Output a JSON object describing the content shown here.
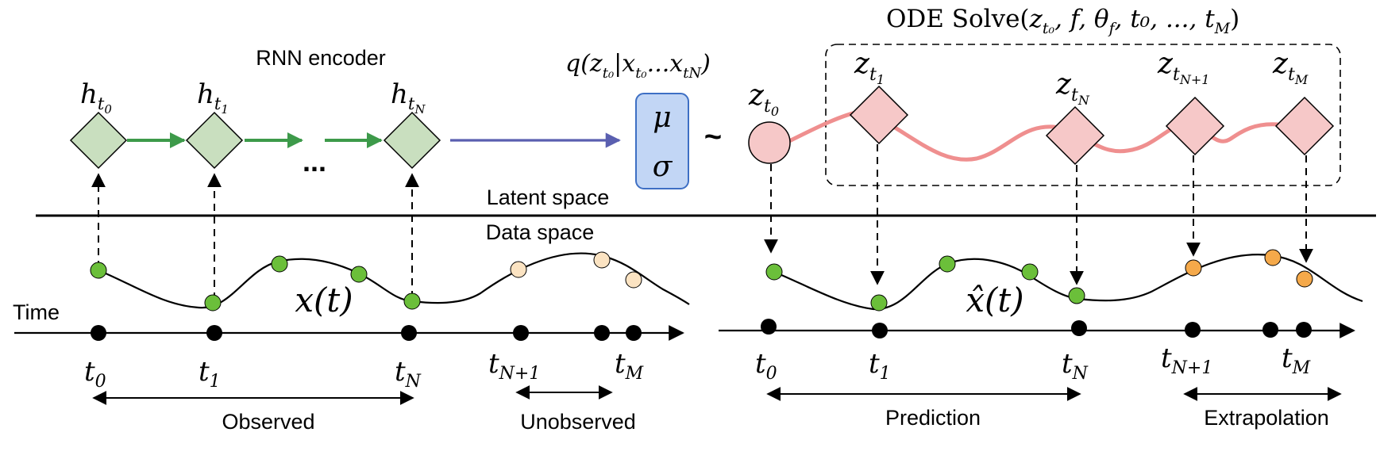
{
  "labels": {
    "rnn_encoder": "RNN encoder",
    "latent_space": "Latent space",
    "data_space": "Data space",
    "time": "Time",
    "ellipsis": "...",
    "observed": "Observed",
    "unobserved": "Unobserved",
    "prediction": "Prediction",
    "extrapolation": "Extrapolation",
    "tilde": "~"
  },
  "math": {
    "ode_solve_prefix": "ODE Solve(",
    "ode_solve_args": "z",
    "ode_solve_sub": "t₀",
    "ode_solve_rest": ", f, θ",
    "ode_theta_sub": "f",
    "ode_solve_tail": ", t₀, ..., t",
    "ode_tail_sub": "M",
    "ode_close": ")",
    "posterior_q": "q(z",
    "posterior_sub": "t₀",
    "posterior_mid": "|x",
    "posterior_x_sub": "t₀",
    "posterior_dots": "...x",
    "posterior_x_sub2": "tN",
    "posterior_close": ")",
    "mu": "μ",
    "sigma": "σ",
    "x_t": "x(t)",
    "x_hat_t": "x̂(t)"
  },
  "encoder_nodes": [
    {
      "base": "h",
      "sub": "t",
      "subsub": "0"
    },
    {
      "base": "h",
      "sub": "t",
      "subsub": "1"
    },
    {
      "base": "h",
      "sub": "t",
      "subsub": "N"
    }
  ],
  "latent_nodes": [
    {
      "base": "z",
      "sub": "t",
      "subsub": "0"
    },
    {
      "base": "z",
      "sub": "t",
      "subsub": "1"
    },
    {
      "base": "z",
      "sub": "t",
      "subsub": "N"
    },
    {
      "base": "z",
      "sub": "t",
      "subsub": "N+1"
    },
    {
      "base": "z",
      "sub": "t",
      "subsub": "M"
    }
  ],
  "left_time_ticks": [
    {
      "base": "t",
      "sub": "0"
    },
    {
      "base": "t",
      "sub": "1"
    },
    {
      "base": "t",
      "sub": "N"
    },
    {
      "base": "t",
      "sub": "N+1"
    },
    {
      "base": "t",
      "sub": "M"
    }
  ],
  "right_time_ticks": [
    {
      "base": "t",
      "sub": "0"
    },
    {
      "base": "t",
      "sub": "1"
    },
    {
      "base": "t",
      "sub": "N"
    },
    {
      "base": "t",
      "sub": "N+1"
    },
    {
      "base": "t",
      "sub": "M"
    }
  ],
  "colors": {
    "encoder_fill": "#c9dfbf",
    "encoder_arrow": "#3d9a4a",
    "encoder_to_posterior": "#5a5fb0",
    "posterior_fill": "#c2d6f5",
    "posterior_stroke": "#3e6fc4",
    "latent_fill": "#f6c8c8",
    "latent_curve": "#ef8f8f",
    "observed_point": "#6bbf3a",
    "unobserved_point": "#fbe3c2",
    "extrapolated_point": "#f5a94a",
    "ink": "#000000"
  }
}
